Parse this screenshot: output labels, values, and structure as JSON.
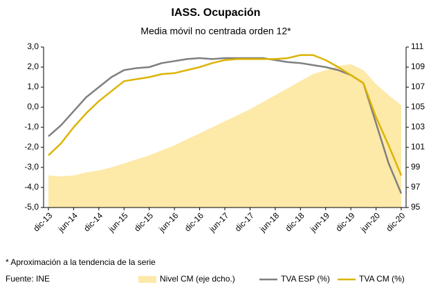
{
  "chart_data": {
    "type": "line",
    "title": "IASS. Ocupación",
    "subtitle": "Media móvil no centrada orden 12*",
    "note": "* Aproximación a la tendencia de la serie",
    "source": "Fuente: INE",
    "categories": [
      "dic-13",
      null,
      "jun-14",
      null,
      "dic-14",
      null,
      "jun-15",
      null,
      "dic-15",
      null,
      "jun-16",
      null,
      "dic-16",
      null,
      "jun-17",
      null,
      "dic-17",
      null,
      "jun-18",
      null,
      "dic-18",
      null,
      "jun-19",
      null,
      "dic-19",
      null,
      "jun-20",
      null,
      "dic-20"
    ],
    "ylim": [
      -5,
      3
    ],
    "yticks": [
      {
        "value": -5,
        "label": "-5,0"
      },
      {
        "value": -4,
        "label": "-4,0"
      },
      {
        "value": -3,
        "label": "-3,0"
      },
      {
        "value": -2,
        "label": "-2,0"
      },
      {
        "value": -1,
        "label": "-1,0"
      },
      {
        "value": 0,
        "label": "0,0"
      },
      {
        "value": 1,
        "label": "1,0"
      },
      {
        "value": 2,
        "label": "2,0"
      },
      {
        "value": 3,
        "label": "3,0"
      }
    ],
    "y2lim": [
      95,
      111
    ],
    "y2ticks": [
      95,
      97,
      99,
      101,
      103,
      105,
      107,
      109,
      111
    ],
    "series": [
      {
        "name": "Nivel CM (eje dcho.)",
        "type": "area",
        "axis": "y2",
        "color": "#fde9a8",
        "values": [
          98.2,
          98.1,
          98.2,
          98.5,
          98.7,
          99.0,
          99.4,
          99.8,
          100.2,
          100.7,
          101.2,
          101.8,
          102.4,
          103.0,
          103.6,
          104.2,
          104.8,
          105.5,
          106.2,
          106.9,
          107.6,
          108.3,
          108.7,
          109.1,
          109.3,
          108.7,
          107.3,
          106.2,
          105.2
        ]
      },
      {
        "name": "TVA ESP (%)",
        "color": "#7f7f7f",
        "values": [
          -1.45,
          -0.9,
          -0.2,
          0.5,
          1.0,
          1.5,
          1.85,
          1.95,
          2.0,
          2.2,
          2.3,
          2.4,
          2.45,
          2.4,
          2.45,
          2.45,
          2.45,
          2.45,
          2.35,
          2.25,
          2.2,
          2.1,
          2.0,
          1.85,
          1.6,
          1.2,
          -0.8,
          -2.8,
          -4.3
        ]
      },
      {
        "name": "TVA CM (%)",
        "color": "#dcb400",
        "values": [
          -2.4,
          -1.8,
          -1.0,
          -0.3,
          0.3,
          0.8,
          1.3,
          1.4,
          1.5,
          1.65,
          1.7,
          1.85,
          2.0,
          2.2,
          2.35,
          2.4,
          2.4,
          2.4,
          2.4,
          2.45,
          2.6,
          2.6,
          2.35,
          2.0,
          1.6,
          1.2,
          -0.5,
          -1.9,
          -3.4
        ]
      }
    ]
  }
}
